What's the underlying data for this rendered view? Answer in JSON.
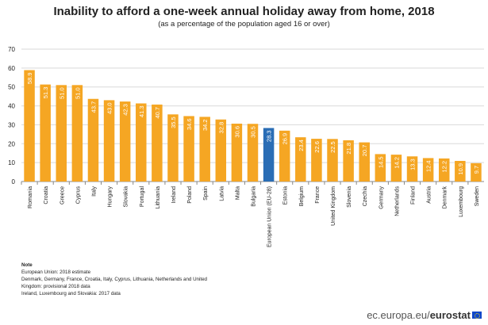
{
  "chart_data": {
    "type": "bar",
    "title": "Inability to afford a one-week annual holiday away from home, 2018",
    "subtitle": "(as a percentage of the population aged 16 or over)",
    "xlabel": "",
    "ylabel": "",
    "ylim": [
      0,
      70
    ],
    "yticks": [
      0,
      10,
      20,
      30,
      40,
      50,
      60,
      70
    ],
    "grid": true,
    "categories": [
      "Romania",
      "Croatia",
      "Greece",
      "Cyprus",
      "Italy",
      "Hungary",
      "Slovakia",
      "Portugal",
      "Lithuania",
      "Ireland",
      "Poland",
      "Spain",
      "Latvia",
      "Malta",
      "Bulgaria",
      "European Union (EU-28)",
      "Estonia",
      "Belgium",
      "France",
      "United Kingdom",
      "Slovenia",
      "Czechia",
      "Germany",
      "Netherlands",
      "Finland",
      "Austria",
      "Denmark",
      "Luxembourg",
      "Sweden"
    ],
    "values": [
      58.9,
      51.3,
      51.0,
      51.0,
      43.7,
      43.0,
      42.3,
      41.3,
      40.7,
      35.5,
      34.6,
      34.2,
      32.8,
      30.6,
      30.5,
      28.3,
      26.9,
      23.4,
      22.6,
      22.5,
      21.8,
      20.7,
      14.5,
      14.2,
      13.3,
      12.4,
      12.2,
      10.9,
      9.7
    ],
    "highlight_category": "European Union (EU-28)",
    "colors": {
      "bar": "#f5a623",
      "highlight": "#2a6db5",
      "grid": "#d9d9d9"
    }
  },
  "note": {
    "heading": "Note",
    "lines": [
      "European Union: 2018 estimate",
      "Denmark, Germany, France, Croatia, Italy, Cyprus, Lithuania, Netherlands and United Kingdom: provisional 2018 data",
      "Ireland, Luxembourg and Slovakia: 2017 data"
    ]
  },
  "brand": {
    "prefix": "ec.europa.eu/",
    "name": "eurostat",
    "logo_icon": "eu-flag-icon"
  }
}
